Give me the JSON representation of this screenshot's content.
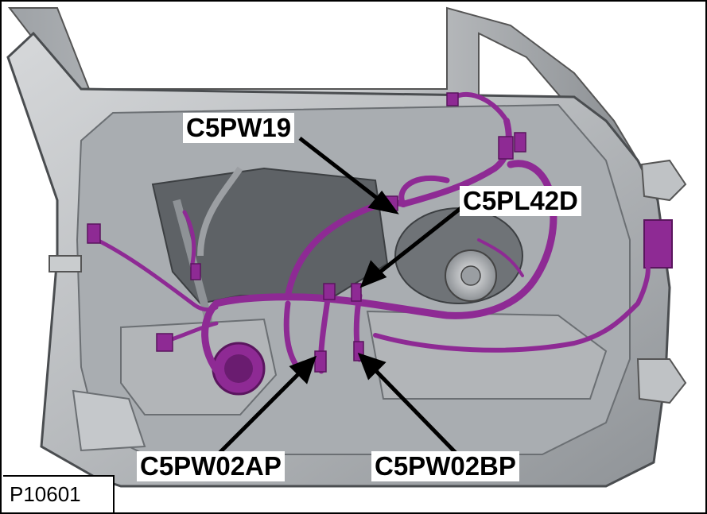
{
  "figure_id": "P10601",
  "callouts": {
    "c5pw19": "C5PW19",
    "c5pl42d": "C5PL42D",
    "c5pw02ap": "C5PW02AP",
    "c5pw02bp": "C5PW02BP"
  },
  "colors": {
    "harness": "#8e2a94",
    "harness_highlight": "#c55ec9",
    "panel": "#b9bcbf",
    "panel_dark": "#7d8185",
    "background": "#ffffff"
  }
}
